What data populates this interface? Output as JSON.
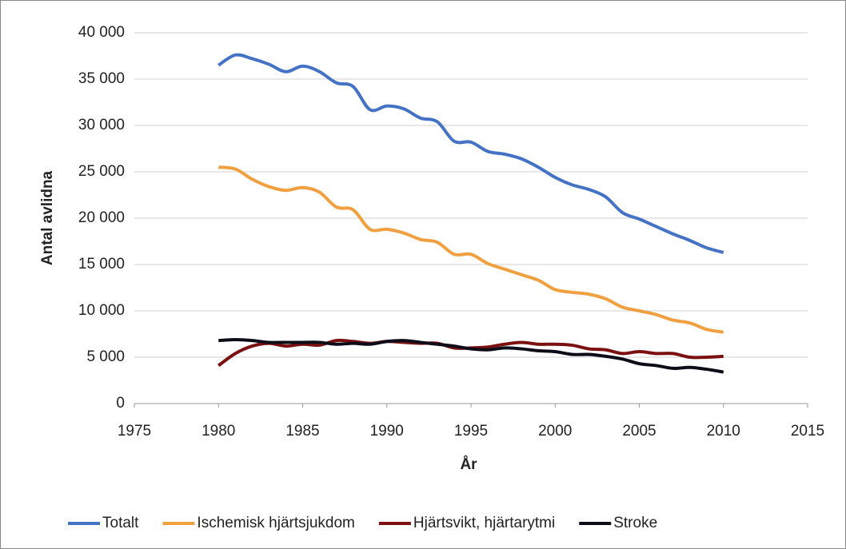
{
  "chart_data": {
    "type": "line",
    "x_label": "År",
    "y_label": "Antal avlidna",
    "x": [
      1980,
      1981,
      1982,
      1983,
      1984,
      1985,
      1986,
      1987,
      1988,
      1989,
      1990,
      1991,
      1992,
      1993,
      1994,
      1995,
      1996,
      1997,
      1998,
      1999,
      2000,
      2001,
      2002,
      2003,
      2004,
      2005,
      2006,
      2007,
      2008,
      2009,
      2010
    ],
    "series": [
      {
        "name": "Totalt",
        "color": "#4472c4",
        "values": [
          36500,
          37600,
          37200,
          36600,
          35800,
          36400,
          35800,
          34600,
          34200,
          31700,
          32100,
          31800,
          30800,
          30400,
          28300,
          28200,
          27200,
          26900,
          26400,
          25500,
          24400,
          23600,
          23100,
          22300,
          20600,
          19900,
          19100,
          18300,
          17600,
          16800,
          16300
        ]
      },
      {
        "name": "Ischemisk hjärtsjukdom",
        "color": "#f0a040",
        "values": [
          25500,
          25300,
          24200,
          23400,
          23000,
          23300,
          22800,
          21200,
          20900,
          18800,
          18800,
          18400,
          17700,
          17400,
          16100,
          16100,
          15100,
          14500,
          13900,
          13300,
          12300,
          12000,
          11800,
          11300,
          10400,
          10000,
          9600,
          9000,
          8700,
          8000,
          7700
        ]
      },
      {
        "name": "Hjärtsvikt, hjärtarytmi",
        "color": "#7b1010",
        "values": [
          4100,
          5400,
          6200,
          6500,
          6200,
          6400,
          6300,
          6800,
          6700,
          6500,
          6700,
          6600,
          6500,
          6500,
          6000,
          6000,
          6100,
          6400,
          6600,
          6400,
          6400,
          6300,
          5900,
          5800,
          5400,
          5600,
          5400,
          5400,
          5000,
          5000,
          5100
        ]
      },
      {
        "name": "Stroke",
        "color": "#0d0d1a",
        "values": [
          6800,
          6900,
          6800,
          6600,
          6600,
          6600,
          6600,
          6400,
          6500,
          6400,
          6700,
          6800,
          6600,
          6400,
          6200,
          5900,
          5800,
          6000,
          5900,
          5700,
          5600,
          5300,
          5300,
          5100,
          4800,
          4300,
          4100,
          3800,
          3900,
          3700,
          3400
        ]
      }
    ],
    "xlim": [
      1975,
      2015
    ],
    "xticks": [
      1975,
      1980,
      1985,
      1990,
      1995,
      2000,
      2005,
      2010,
      2015
    ],
    "ylim": [
      0,
      40000
    ],
    "yticks": [
      0,
      {
        "value": 5000,
        "label": "5 000"
      },
      {
        "value": 10000,
        "label": "10 000"
      },
      {
        "value": 15000,
        "label": "15 000"
      },
      {
        "value": 20000,
        "label": "20 000"
      },
      {
        "value": 25000,
        "label": "25 000"
      },
      {
        "value": 30000,
        "label": "30 000"
      },
      {
        "value": 35000,
        "label": "35 000"
      },
      {
        "value": 40000,
        "label": "40 000"
      }
    ],
    "grid": true,
    "legend": "bottom"
  }
}
